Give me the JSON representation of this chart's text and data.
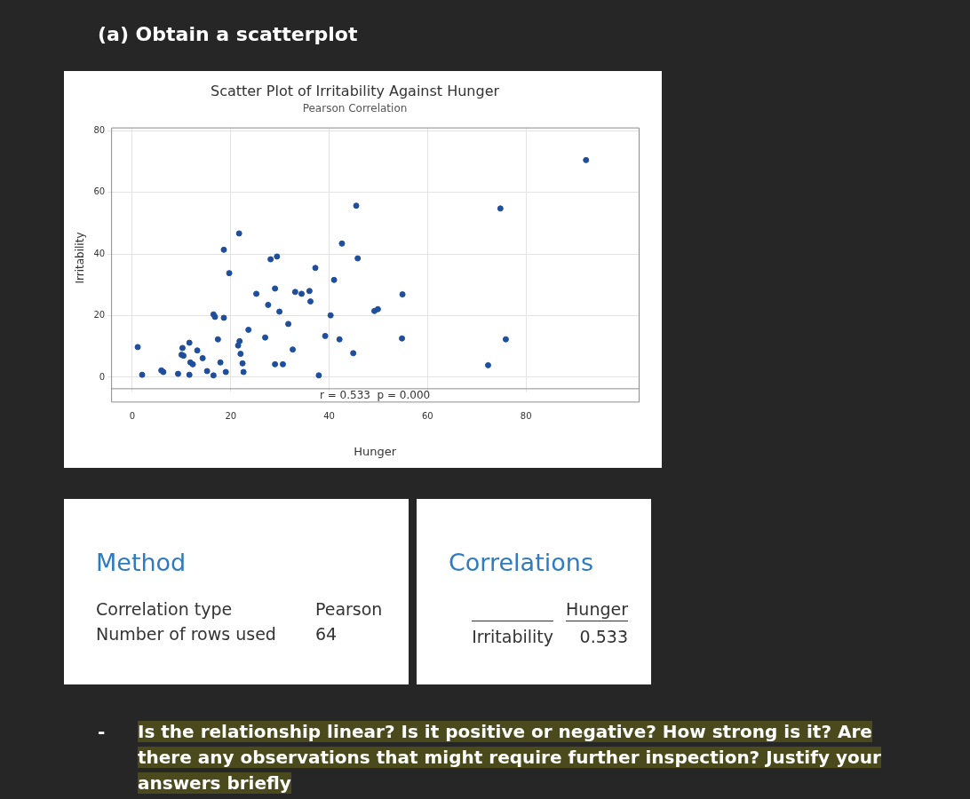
{
  "chart_data": [
    {
      "type": "other",
      "title": "(a) Obtain a scatterplot"
    },
    {
      "type": "scatter",
      "title": "Scatter Plot of Irritability Against Hunger",
      "subtitle": "Pearson Correlation",
      "xlabel": "Hunger",
      "ylabel": "Irritability",
      "color": "#1f4e9c",
      "marker": "circle",
      "grid": true,
      "legend": false,
      "x": [
        1.1,
        2.0,
        5.9,
        6.3,
        9.3,
        10.2,
        10.0,
        10.4,
        11.6,
        11.8,
        12.3,
        11.6,
        13.2,
        14.3,
        15.2,
        16.5,
        16.8,
        18.6,
        16.5,
        17.4,
        17.9,
        18.6,
        19.0,
        19.7,
        21.7,
        21.5,
        21.8,
        22.0,
        22.4,
        22.6,
        23.6,
        25.2,
        27.0,
        27.6,
        28.1,
        29.4,
        29.0,
        29.0,
        30.6,
        29.9,
        31.7,
        32.6,
        33.1,
        34.4,
        36.0,
        36.2,
        37.2,
        37.9,
        39.2,
        40.3,
        41.0,
        42.1,
        42.6,
        44.9,
        45.5,
        45.8,
        49.2,
        49.9,
        54.9,
        54.8,
        72.3,
        74.8,
        75.9,
        92.2
      ],
      "values": [
        9.8,
        0.8,
        2.2,
        1.7,
        1.1,
        9.5,
        7.3,
        7.0,
        11.2,
        4.8,
        4.2,
        0.8,
        8.7,
        6.2,
        2.0,
        20.4,
        19.6,
        19.3,
        0.6,
        12.3,
        4.8,
        41.4,
        1.7,
        33.8,
        46.7,
        10.3,
        11.7,
        7.6,
        4.5,
        1.7,
        15.4,
        27.1,
        12.9,
        23.5,
        38.3,
        39.2,
        28.8,
        4.2,
        4.2,
        21.3,
        17.3,
        9.0,
        27.7,
        27.1,
        28.0,
        24.6,
        35.5,
        0.6,
        13.4,
        20.1,
        31.6,
        12.3,
        43.4,
        7.8,
        55.7,
        38.6,
        21.5,
        22.1,
        26.9,
        12.6,
        3.9,
        54.8,
        12.3,
        70.5
      ],
      "xlim": [
        -4.3,
        102.9
      ],
      "ylim": [
        -3.6,
        81.1
      ],
      "xticks": [
        0,
        20,
        40,
        60,
        80
      ],
      "yticks": [
        0,
        20,
        40,
        60,
        80
      ],
      "annotations": [
        "r = 0.533  p = 0.000"
      ]
    },
    {
      "type": "other",
      "title": "Method",
      "annotations": [
        "Correlation type",
        "Pearson",
        "Number of rows used",
        "64"
      ]
    },
    {
      "type": "other",
      "title": "Correlations",
      "annotations": [
        "Hunger",
        "Irritability",
        "0.533"
      ]
    },
    {
      "type": "other",
      "annotations": [
        "-",
        "Is the relationship linear? Is it positive or negative? How strong is it? Are there any observations that might require further inspection? Justify your answers briefly"
      ]
    }
  ]
}
